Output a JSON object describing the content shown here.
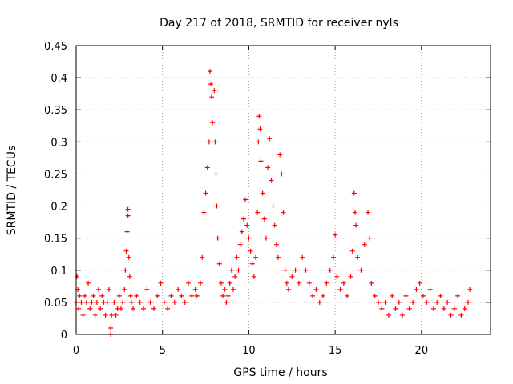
{
  "chart_data": {
    "type": "scatter",
    "title": "Day 217 of 2018, SRMTID for receiver nyls",
    "xlabel": "GPS time / hours",
    "ylabel": "SRMTID / TECUs",
    "xlim": [
      0,
      24
    ],
    "ylim": [
      0,
      0.45
    ],
    "x_ticks": [
      0,
      5,
      10,
      15,
      20
    ],
    "x_tick_labels": [
      "0",
      "5",
      "10",
      "15",
      "20"
    ],
    "y_ticks": [
      0,
      0.05,
      0.1,
      0.15,
      0.2,
      0.25,
      0.3,
      0.35,
      0.4,
      0.45
    ],
    "y_tick_labels": [
      "0",
      "0.05",
      "0.1",
      "0.15",
      "0.2",
      "0.25",
      "0.3",
      "0.35",
      "0.4",
      "0.45"
    ],
    "grid": true,
    "marker": "+",
    "marker_color": "#ff0000",
    "series": [
      {
        "name": "SRMTID",
        "points": [
          [
            0.0,
            0.05
          ],
          [
            0.05,
            0.09
          ],
          [
            0.1,
            0.07
          ],
          [
            0.15,
            0.04
          ],
          [
            0.2,
            0.06
          ],
          [
            0.3,
            0.05
          ],
          [
            0.4,
            0.03
          ],
          [
            0.5,
            0.06
          ],
          [
            0.6,
            0.05
          ],
          [
            0.7,
            0.08
          ],
          [
            0.8,
            0.04
          ],
          [
            0.9,
            0.05
          ],
          [
            1.0,
            0.06
          ],
          [
            1.1,
            0.03
          ],
          [
            1.2,
            0.05
          ],
          [
            1.3,
            0.07
          ],
          [
            1.4,
            0.04
          ],
          [
            1.5,
            0.06
          ],
          [
            1.6,
            0.05
          ],
          [
            1.7,
            0.03
          ],
          [
            1.8,
            0.05
          ],
          [
            1.9,
            0.07
          ],
          [
            2.0,
            0.01
          ],
          [
            2.0,
            0.0
          ],
          [
            2.05,
            0.03
          ],
          [
            2.2,
            0.05
          ],
          [
            2.3,
            0.03
          ],
          [
            2.4,
            0.04
          ],
          [
            2.5,
            0.06
          ],
          [
            2.6,
            0.04
          ],
          [
            2.7,
            0.05
          ],
          [
            2.8,
            0.07
          ],
          [
            2.85,
            0.1
          ],
          [
            2.9,
            0.13
          ],
          [
            2.95,
            0.16
          ],
          [
            3.0,
            0.195
          ],
          [
            3.0,
            0.185
          ],
          [
            3.05,
            0.12
          ],
          [
            3.1,
            0.09
          ],
          [
            3.15,
            0.06
          ],
          [
            3.2,
            0.05
          ],
          [
            3.3,
            0.04
          ],
          [
            3.5,
            0.06
          ],
          [
            3.7,
            0.05
          ],
          [
            3.9,
            0.04
          ],
          [
            4.1,
            0.07
          ],
          [
            4.3,
            0.05
          ],
          [
            4.5,
            0.04
          ],
          [
            4.7,
            0.06
          ],
          [
            4.9,
            0.08
          ],
          [
            5.1,
            0.05
          ],
          [
            5.3,
            0.04
          ],
          [
            5.5,
            0.06
          ],
          [
            5.7,
            0.05
          ],
          [
            5.9,
            0.07
          ],
          [
            6.1,
            0.06
          ],
          [
            6.3,
            0.05
          ],
          [
            6.5,
            0.08
          ],
          [
            6.7,
            0.06
          ],
          [
            6.9,
            0.07
          ],
          [
            7.0,
            0.06
          ],
          [
            7.2,
            0.08
          ],
          [
            7.3,
            0.12
          ],
          [
            7.4,
            0.19
          ],
          [
            7.5,
            0.22
          ],
          [
            7.6,
            0.26
          ],
          [
            7.7,
            0.3
          ],
          [
            7.75,
            0.41
          ],
          [
            7.8,
            0.39
          ],
          [
            7.85,
            0.37
          ],
          [
            7.9,
            0.33
          ],
          [
            8.0,
            0.38
          ],
          [
            8.05,
            0.3
          ],
          [
            8.1,
            0.25
          ],
          [
            8.15,
            0.2
          ],
          [
            8.2,
            0.15
          ],
          [
            8.3,
            0.11
          ],
          [
            8.4,
            0.08
          ],
          [
            8.5,
            0.06
          ],
          [
            8.6,
            0.07
          ],
          [
            8.7,
            0.05
          ],
          [
            8.8,
            0.06
          ],
          [
            8.9,
            0.08
          ],
          [
            9.0,
            0.1
          ],
          [
            9.1,
            0.07
          ],
          [
            9.2,
            0.09
          ],
          [
            9.3,
            0.12
          ],
          [
            9.4,
            0.1
          ],
          [
            9.5,
            0.14
          ],
          [
            9.6,
            0.16
          ],
          [
            9.7,
            0.18
          ],
          [
            9.8,
            0.21
          ],
          [
            9.9,
            0.17
          ],
          [
            10.0,
            0.15
          ],
          [
            10.1,
            0.13
          ],
          [
            10.2,
            0.11
          ],
          [
            10.3,
            0.09
          ],
          [
            10.4,
            0.12
          ],
          [
            10.5,
            0.19
          ],
          [
            10.55,
            0.3
          ],
          [
            10.6,
            0.34
          ],
          [
            10.65,
            0.32
          ],
          [
            10.7,
            0.27
          ],
          [
            10.8,
            0.22
          ],
          [
            10.9,
            0.18
          ],
          [
            11.0,
            0.15
          ],
          [
            11.1,
            0.26
          ],
          [
            11.2,
            0.305
          ],
          [
            11.3,
            0.24
          ],
          [
            11.4,
            0.2
          ],
          [
            11.5,
            0.17
          ],
          [
            11.6,
            0.14
          ],
          [
            11.7,
            0.12
          ],
          [
            11.8,
            0.28
          ],
          [
            11.9,
            0.25
          ],
          [
            12.0,
            0.19
          ],
          [
            12.1,
            0.1
          ],
          [
            12.2,
            0.08
          ],
          [
            12.3,
            0.07
          ],
          [
            12.5,
            0.09
          ],
          [
            12.7,
            0.1
          ],
          [
            12.9,
            0.08
          ],
          [
            13.1,
            0.12
          ],
          [
            13.3,
            0.1
          ],
          [
            13.5,
            0.08
          ],
          [
            13.7,
            0.06
          ],
          [
            13.9,
            0.07
          ],
          [
            14.1,
            0.05
          ],
          [
            14.3,
            0.06
          ],
          [
            14.5,
            0.08
          ],
          [
            14.7,
            0.1
          ],
          [
            14.9,
            0.12
          ],
          [
            15.0,
            0.155
          ],
          [
            15.1,
            0.09
          ],
          [
            15.3,
            0.07
          ],
          [
            15.5,
            0.08
          ],
          [
            15.7,
            0.06
          ],
          [
            15.9,
            0.09
          ],
          [
            16.0,
            0.13
          ],
          [
            16.1,
            0.22
          ],
          [
            16.15,
            0.19
          ],
          [
            16.2,
            0.17
          ],
          [
            16.3,
            0.12
          ],
          [
            16.5,
            0.1
          ],
          [
            16.7,
            0.14
          ],
          [
            16.9,
            0.19
          ],
          [
            17.0,
            0.15
          ],
          [
            17.1,
            0.08
          ],
          [
            17.3,
            0.06
          ],
          [
            17.5,
            0.05
          ],
          [
            17.7,
            0.04
          ],
          [
            17.9,
            0.05
          ],
          [
            18.1,
            0.03
          ],
          [
            18.3,
            0.06
          ],
          [
            18.5,
            0.04
          ],
          [
            18.7,
            0.05
          ],
          [
            18.9,
            0.03
          ],
          [
            19.1,
            0.06
          ],
          [
            19.3,
            0.04
          ],
          [
            19.5,
            0.05
          ],
          [
            19.7,
            0.07
          ],
          [
            19.9,
            0.08
          ],
          [
            20.1,
            0.06
          ],
          [
            20.3,
            0.05
          ],
          [
            20.5,
            0.07
          ],
          [
            20.7,
            0.04
          ],
          [
            20.9,
            0.05
          ],
          [
            21.1,
            0.06
          ],
          [
            21.3,
            0.04
          ],
          [
            21.5,
            0.05
          ],
          [
            21.7,
            0.03
          ],
          [
            21.9,
            0.04
          ],
          [
            22.1,
            0.06
          ],
          [
            22.3,
            0.03
          ],
          [
            22.5,
            0.04
          ],
          [
            22.7,
            0.05
          ],
          [
            22.8,
            0.07
          ]
        ]
      }
    ]
  }
}
